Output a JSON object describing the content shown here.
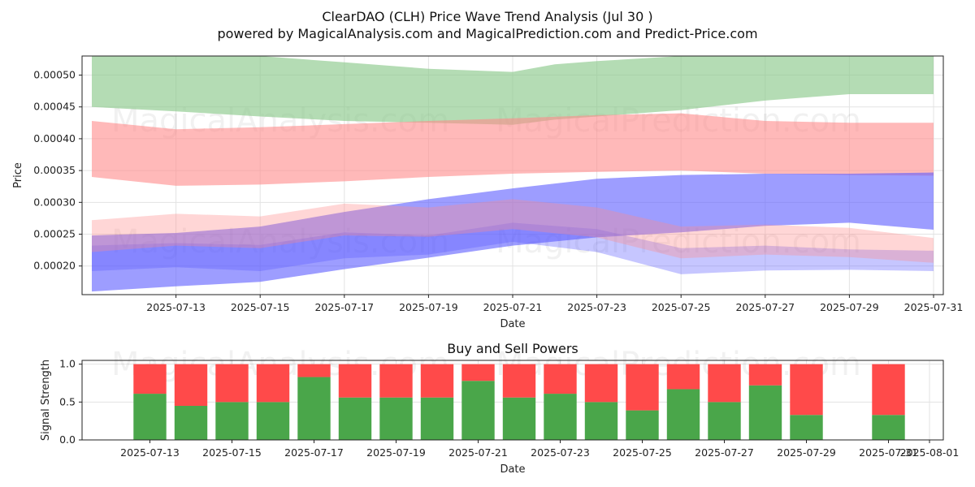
{
  "header": {
    "title": "ClearDAO (CLH) Price Wave Trend Analysis (Jul 30 )",
    "subtitle": "powered by MagicalAnalysis.com and MagicalPrediction.com and Predict-Price.com"
  },
  "watermarks": [
    "MagicalAnalysis.com",
    "MagicalPrediction.com"
  ],
  "colors": {
    "green_band": "#8cc98c",
    "red_band": "#ff8a8a",
    "blue_band": "#5b5bff",
    "buy": "#4aa64a",
    "sell": "#ff4a4a"
  },
  "chart_data": [
    {
      "type": "area",
      "xlabel": "Date",
      "ylabel": "Price",
      "xlim": [
        "2025-07-11",
        "2025-07-31"
      ],
      "ylim": [
        0.000155,
        0.00053
      ],
      "grid": true,
      "x_ticks": [
        "2025-07-13",
        "2025-07-15",
        "2025-07-17",
        "2025-07-19",
        "2025-07-21",
        "2025-07-23",
        "2025-07-25",
        "2025-07-27",
        "2025-07-29",
        "2025-07-31"
      ],
      "y_ticks": [
        "0.00020",
        "0.00025",
        "0.00030",
        "0.00035",
        "0.00040",
        "0.00045",
        "0.00050"
      ],
      "bands": [
        {
          "color": "green",
          "x": [
            "2025-07-11",
            "2025-07-13",
            "2025-07-15",
            "2025-07-17",
            "2025-07-19",
            "2025-07-21",
            "2025-07-22",
            "2025-07-23",
            "2025-07-25",
            "2025-07-27",
            "2025-07-29",
            "2025-07-31"
          ],
          "upper": [
            0.00053,
            0.00053,
            0.00053,
            0.00052,
            0.00051,
            0.000505,
            0.000517,
            0.000522,
            0.00053,
            0.00053,
            0.00053,
            0.00053
          ],
          "lower": [
            0.00045,
            0.000443,
            0.000435,
            0.000428,
            0.000425,
            0.000422,
            0.00043,
            0.000435,
            0.000445,
            0.00046,
            0.00047,
            0.00047
          ]
        },
        {
          "color": "red",
          "x": [
            "2025-07-11",
            "2025-07-13",
            "2025-07-15",
            "2025-07-17",
            "2025-07-19",
            "2025-07-21",
            "2025-07-23",
            "2025-07-25",
            "2025-07-27",
            "2025-07-29",
            "2025-07-31"
          ],
          "upper": [
            0.000428,
            0.000415,
            0.000418,
            0.000423,
            0.000428,
            0.000432,
            0.000437,
            0.00044,
            0.000428,
            0.000425,
            0.000425
          ],
          "lower": [
            0.00034,
            0.000326,
            0.000328,
            0.000333,
            0.00034,
            0.000345,
            0.000348,
            0.00035,
            0.000345,
            0.000343,
            0.000342
          ]
        },
        {
          "color": "blue",
          "x": [
            "2025-07-11",
            "2025-07-13",
            "2025-07-15",
            "2025-07-17",
            "2025-07-19",
            "2025-07-21",
            "2025-07-23",
            "2025-07-25",
            "2025-07-27",
            "2025-07-29",
            "2025-07-31"
          ],
          "upper": [
            0.000248,
            0.000252,
            0.000262,
            0.000285,
            0.000305,
            0.000322,
            0.000337,
            0.000343,
            0.000345,
            0.000345,
            0.000347
          ],
          "lower": [
            0.00016,
            0.000168,
            0.000175,
            0.000195,
            0.000213,
            0.000232,
            0.000245,
            0.000253,
            0.000263,
            0.000268,
            0.000257
          ]
        },
        {
          "color": "blue",
          "x": [
            "2025-07-11",
            "2025-07-13",
            "2025-07-15",
            "2025-07-17",
            "2025-07-19",
            "2025-07-21",
            "2025-07-23",
            "2025-07-25",
            "2025-07-27",
            "2025-07-29",
            "2025-07-31"
          ],
          "upper": [
            0.000232,
            0.000236,
            0.000233,
            0.000253,
            0.000248,
            0.000268,
            0.000258,
            0.000228,
            0.000232,
            0.000226,
            0.000224
          ],
          "lower": [
            0.000192,
            0.000198,
            0.000192,
            0.000212,
            0.000218,
            0.000238,
            0.000222,
            0.000187,
            0.000193,
            0.000194,
            0.000192
          ]
        },
        {
          "color": "red",
          "x": [
            "2025-07-11",
            "2025-07-13",
            "2025-07-15",
            "2025-07-17",
            "2025-07-19",
            "2025-07-21",
            "2025-07-23",
            "2025-07-25",
            "2025-07-27",
            "2025-07-29",
            "2025-07-31"
          ],
          "upper": [
            0.000272,
            0.000282,
            0.000278,
            0.000298,
            0.000292,
            0.000305,
            0.000292,
            0.000262,
            0.000265,
            0.00026,
            0.000244
          ],
          "lower": [
            0.000222,
            0.000232,
            0.000228,
            0.000248,
            0.000246,
            0.000258,
            0.000245,
            0.000212,
            0.000218,
            0.000214,
            0.000205
          ]
        }
      ]
    },
    {
      "type": "bar",
      "title": "Buy and Sell Powers",
      "xlabel": "Date",
      "ylabel": "Signal Strength",
      "ylim": [
        0,
        1.05
      ],
      "grid": true,
      "y_ticks": [
        "0.0",
        "0.5",
        "1.0"
      ],
      "x_ticks": [
        "2025-07-13",
        "2025-07-15",
        "2025-07-17",
        "2025-07-19",
        "2025-07-21",
        "2025-07-23",
        "2025-07-25",
        "2025-07-27",
        "2025-07-29",
        "2025-07-31",
        "2025-08-01"
      ],
      "categories": [
        "2025-07-13",
        "2025-07-14",
        "2025-07-15",
        "2025-07-16",
        "2025-07-17",
        "2025-07-18",
        "2025-07-19",
        "2025-07-20",
        "2025-07-21",
        "2025-07-22",
        "2025-07-23",
        "2025-07-24",
        "2025-07-25",
        "2025-07-26",
        "2025-07-27",
        "2025-07-28",
        "2025-07-29",
        "2025-07-31"
      ],
      "series": [
        {
          "name": "Buy",
          "values": [
            0.61,
            0.45,
            0.5,
            0.5,
            0.83,
            0.56,
            0.56,
            0.56,
            0.78,
            0.56,
            0.61,
            0.5,
            0.39,
            0.67,
            0.5,
            0.72,
            0.33,
            0.33
          ]
        },
        {
          "name": "Sell",
          "values": [
            0.39,
            0.55,
            0.5,
            0.5,
            0.17,
            0.44,
            0.44,
            0.44,
            0.22,
            0.44,
            0.39,
            0.5,
            0.61,
            0.33,
            0.5,
            0.28,
            0.67,
            0.67
          ]
        }
      ]
    }
  ]
}
